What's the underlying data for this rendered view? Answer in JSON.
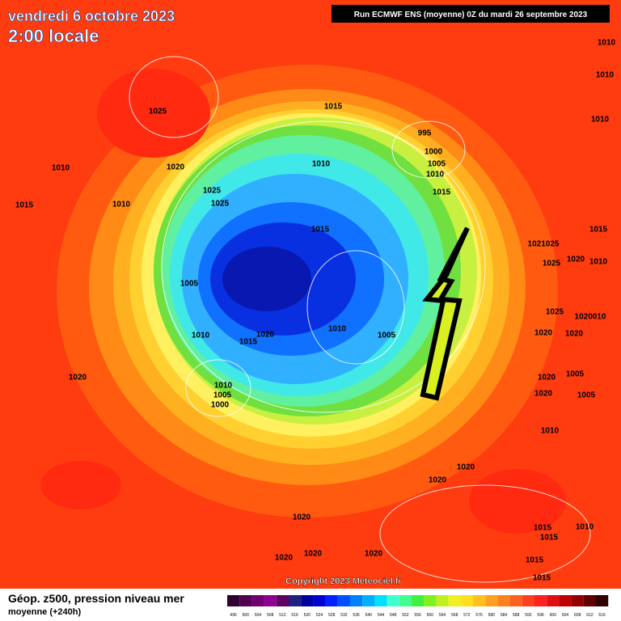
{
  "header": {
    "date": "vendredi 6 octobre 2023",
    "time": "2:00 locale",
    "run": "Run ECMWF ENS (moyenne) 0Z du mardi 26 septembre 2023"
  },
  "isobar_labels": [
    "1010",
    "1010",
    "1010",
    "1025",
    "1015",
    "995",
    "1000",
    "1005",
    "1010",
    "1015",
    "1010",
    "1020",
    "1010",
    "1025",
    "1025",
    "1015",
    "1010",
    "1015",
    "1021025",
    "1015",
    "1025",
    "1020",
    "1010",
    "1005",
    "1025",
    "1020010",
    "1010",
    "1010",
    "1020",
    "1015",
    "1005",
    "1020",
    "1020",
    "1020",
    "1005",
    "1020",
    "1010",
    "1005",
    "1000",
    "1020",
    "1005",
    "1010",
    "1020",
    "1020",
    "1020",
    "1015",
    "1015",
    "1010",
    "1020",
    "1020",
    "1020",
    "1015",
    "1015"
  ],
  "copyright": "Copyright 2023 Meteociel.fr",
  "footer": {
    "title": "Géop. z500, pression niveau mer",
    "subtitle": "moyenne  (+240h)"
  },
  "colorbar": [
    496,
    500,
    504,
    508,
    512,
    516,
    520,
    524,
    528,
    532,
    536,
    540,
    544,
    548,
    552,
    556,
    560,
    564,
    568,
    572,
    576,
    580,
    584,
    588,
    592,
    596,
    600,
    604,
    608,
    612,
    616
  ]
}
